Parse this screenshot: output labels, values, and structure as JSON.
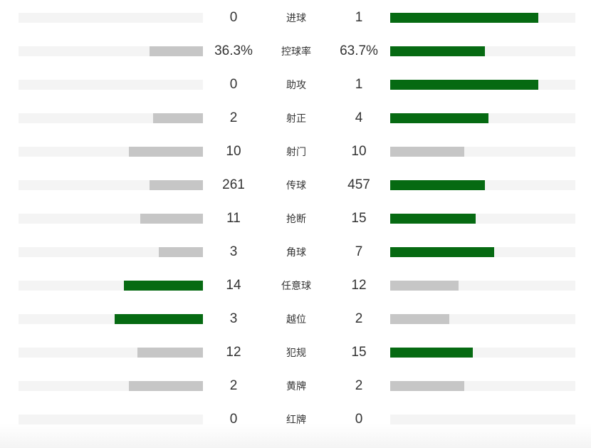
{
  "colors": {
    "win": "#066a12",
    "lose": "#c6c6c6",
    "track": "#f4f4f4"
  },
  "stats": [
    {
      "label": "进球",
      "left": "0",
      "right": "1",
      "left_fill": 0.0,
      "right_fill": 0.8,
      "left_color": "lose",
      "right_color": "win"
    },
    {
      "label": "控球率",
      "left": "36.3%",
      "right": "63.7%",
      "left_fill": 0.29,
      "right_fill": 0.51,
      "left_color": "lose",
      "right_color": "win"
    },
    {
      "label": "助攻",
      "left": "0",
      "right": "1",
      "left_fill": 0.0,
      "right_fill": 0.8,
      "left_color": "lose",
      "right_color": "win"
    },
    {
      "label": "射正",
      "left": "2",
      "right": "4",
      "left_fill": 0.27,
      "right_fill": 0.53,
      "left_color": "lose",
      "right_color": "win"
    },
    {
      "label": "射门",
      "left": "10",
      "right": "10",
      "left_fill": 0.4,
      "right_fill": 0.4,
      "left_color": "lose",
      "right_color": "lose"
    },
    {
      "label": "传球",
      "left": "261",
      "right": "457",
      "left_fill": 0.29,
      "right_fill": 0.51,
      "left_color": "lose",
      "right_color": "win"
    },
    {
      "label": "抢断",
      "left": "11",
      "right": "15",
      "left_fill": 0.34,
      "right_fill": 0.46,
      "left_color": "lose",
      "right_color": "win"
    },
    {
      "label": "角球",
      "left": "3",
      "right": "7",
      "left_fill": 0.24,
      "right_fill": 0.56,
      "left_color": "lose",
      "right_color": "win"
    },
    {
      "label": "任意球",
      "left": "14",
      "right": "12",
      "left_fill": 0.43,
      "right_fill": 0.37,
      "left_color": "win",
      "right_color": "lose"
    },
    {
      "label": "越位",
      "left": "3",
      "right": "2",
      "left_fill": 0.48,
      "right_fill": 0.32,
      "left_color": "win",
      "right_color": "lose"
    },
    {
      "label": "犯规",
      "left": "12",
      "right": "15",
      "left_fill": 0.355,
      "right_fill": 0.445,
      "left_color": "lose",
      "right_color": "win"
    },
    {
      "label": "黄牌",
      "left": "2",
      "right": "2",
      "left_fill": 0.4,
      "right_fill": 0.4,
      "left_color": "lose",
      "right_color": "lose"
    },
    {
      "label": "红牌",
      "left": "0",
      "right": "0",
      "left_fill": 0.0,
      "right_fill": 0.0,
      "left_color": "lose",
      "right_color": "lose"
    }
  ]
}
